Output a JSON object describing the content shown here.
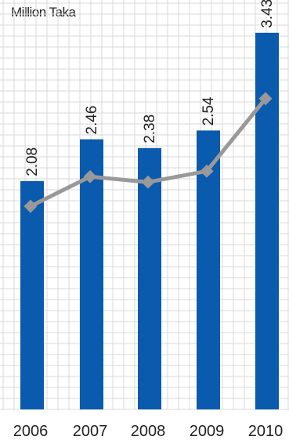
{
  "chart_data": {
    "type": "bar",
    "title": "",
    "unit_label": "Million Taka",
    "categories": [
      "2006",
      "2007",
      "2008",
      "2009",
      "2010"
    ],
    "series": [
      {
        "values": [
          2.08,
          2.46,
          2.38,
          2.54,
          3.43
        ]
      }
    ],
    "line_series": {
      "values": [
        1.85,
        2.12,
        2.07,
        2.17,
        2.83
      ]
    },
    "ylim": [
      0,
      3.6
    ],
    "grid": true,
    "legend": "none",
    "colors": {
      "bar": "#0a5aad",
      "line": "#999999",
      "marker": "#999999",
      "grid": "#d9d9d9"
    }
  }
}
